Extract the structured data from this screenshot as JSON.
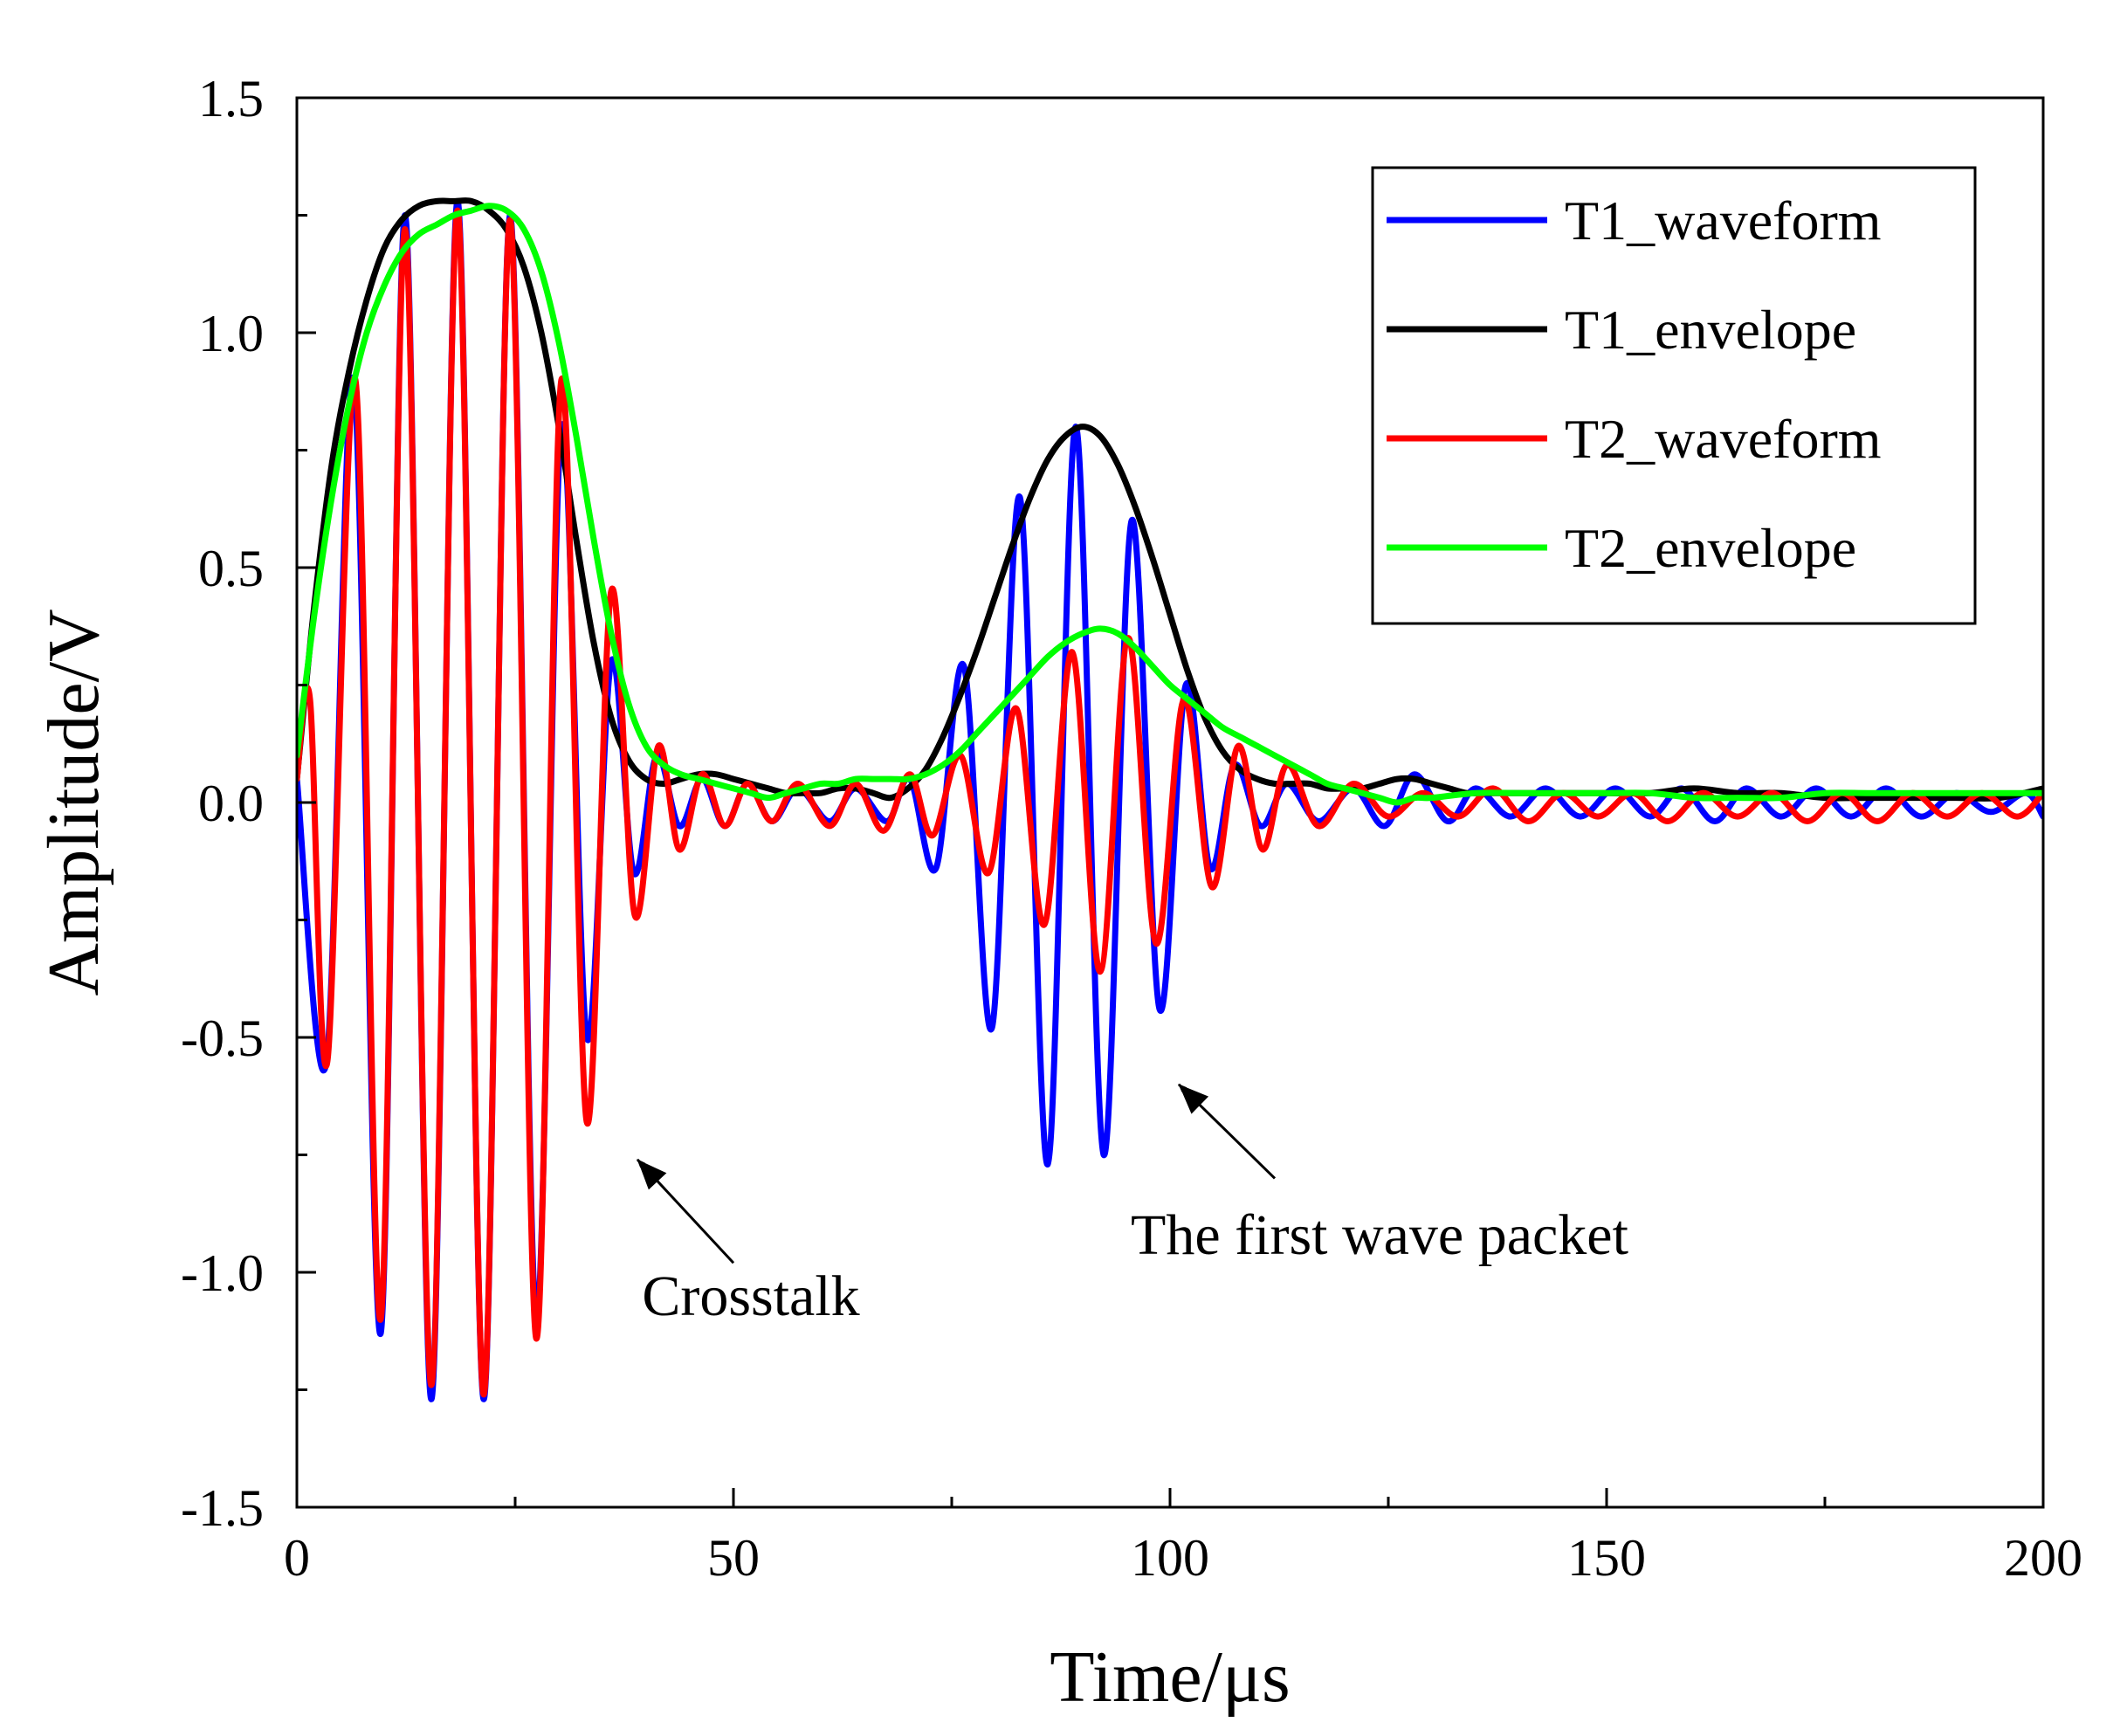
{
  "chart_data": {
    "type": "line",
    "xlabel": "Time/μs",
    "ylabel": "Amplitude/V",
    "xlim": [
      0,
      200
    ],
    "ylim": [
      -1.5,
      1.5
    ],
    "xticks": [
      0,
      50,
      100,
      150,
      200
    ],
    "xtick_labels": [
      "0",
      "50",
      "100",
      "150",
      "200"
    ],
    "yticks": [
      -1.5,
      -1.0,
      -0.5,
      0.0,
      0.5,
      1.0,
      1.5
    ],
    "ytick_labels": [
      "-1.5",
      "-1.0",
      "-0.5",
      "0.0",
      "0.5",
      "1.0",
      "1.5"
    ],
    "grid": false,
    "legend_position": "top-right",
    "series": [
      {
        "name": "T1_waveform",
        "color": "#0000ff",
        "x": [
          0,
          3.4,
          6.5,
          9.6,
          12.4,
          15.4,
          18.4,
          21.4,
          24.4,
          27.4,
          30.3,
          33.2,
          36,
          38.6,
          41.2,
          43.8,
          46.4,
          49,
          51.6,
          54.4,
          57.4,
          61,
          64,
          67.6,
          70.2,
          73.2,
          76.4,
          79.6,
          82.8,
          86,
          89.2,
          92.4,
          95.6,
          98.8,
          101.8,
          104.6,
          107.4,
          110.4,
          113.4,
          117,
          121,
          124.6,
          128,
          131.8,
          135,
          139,
          143,
          147,
          151,
          155,
          158.6,
          162.4,
          166,
          170,
          174,
          178,
          182,
          186,
          190,
          194,
          198,
          200
        ],
        "y": [
          0.05,
          -0.55,
          0.9,
          -1.13,
          1.25,
          -1.27,
          1.28,
          -1.27,
          1.25,
          -1.1,
          0.8,
          -0.5,
          0.3,
          -0.15,
          0.1,
          -0.05,
          0.05,
          -0.05,
          0.04,
          -0.04,
          0.03,
          -0.04,
          0.03,
          -0.04,
          0.05,
          -0.14,
          0.29,
          -0.48,
          0.65,
          -0.77,
          0.8,
          -0.75,
          0.6,
          -0.44,
          0.25,
          -0.14,
          0.08,
          -0.05,
          0.04,
          -0.04,
          0.03,
          -0.05,
          0.06,
          -0.04,
          0.03,
          -0.03,
          0.03,
          -0.03,
          0.03,
          -0.03,
          0.03,
          -0.04,
          0.03,
          -0.03,
          0.03,
          -0.03,
          0.03,
          -0.03,
          0.02,
          -0.02,
          0.02,
          -0.03
        ]
      },
      {
        "name": "T1_envelope",
        "color": "#000000",
        "x": [
          0,
          2,
          4,
          6,
          8,
          10,
          12,
          14,
          16,
          18,
          20,
          22,
          24,
          26,
          28,
          30,
          32,
          34,
          36,
          38,
          40,
          42,
          44,
          46,
          48,
          50,
          52,
          54,
          56,
          58,
          60,
          62,
          64,
          66,
          68,
          70,
          72,
          74,
          76,
          78,
          80,
          82,
          84,
          86,
          88,
          90,
          92,
          94,
          96,
          98,
          100,
          102,
          104,
          106,
          108,
          110,
          112,
          114,
          116,
          118,
          120,
          122,
          124,
          126,
          128,
          130,
          132,
          134,
          136,
          138,
          140,
          145,
          150,
          155,
          160,
          165,
          170,
          175,
          180,
          185,
          190,
          195,
          200
        ],
        "y": [
          0.05,
          0.42,
          0.72,
          0.92,
          1.07,
          1.18,
          1.24,
          1.27,
          1.28,
          1.28,
          1.28,
          1.26,
          1.22,
          1.14,
          1.0,
          0.8,
          0.56,
          0.34,
          0.18,
          0.09,
          0.05,
          0.04,
          0.05,
          0.06,
          0.06,
          0.05,
          0.04,
          0.03,
          0.02,
          0.02,
          0.02,
          0.03,
          0.03,
          0.02,
          0.01,
          0.03,
          0.07,
          0.14,
          0.23,
          0.33,
          0.44,
          0.55,
          0.65,
          0.73,
          0.78,
          0.8,
          0.78,
          0.72,
          0.63,
          0.52,
          0.4,
          0.28,
          0.18,
          0.11,
          0.07,
          0.05,
          0.04,
          0.04,
          0.04,
          0.03,
          0.03,
          0.03,
          0.04,
          0.05,
          0.05,
          0.04,
          0.03,
          0.02,
          0.02,
          0.02,
          0.02,
          0.02,
          0.02,
          0.02,
          0.03,
          0.02,
          0.02,
          0.01,
          0.01,
          0.01,
          0.01,
          0.01,
          0.03
        ]
      },
      {
        "name": "T2_waveform",
        "color": "#ff0000",
        "x": [
          0,
          1.5,
          3.5,
          6.7,
          9.6,
          12.4,
          15.4,
          18.4,
          21.4,
          24.4,
          27.4,
          30.3,
          33.2,
          36,
          38.7,
          41.4,
          43.8,
          46.4,
          49,
          51.6,
          54.4,
          57.4,
          61,
          64,
          67.2,
          70.2,
          72.8,
          76,
          79.2,
          82.4,
          85.6,
          88.8,
          92,
          95.2,
          98.4,
          101.6,
          104.8,
          107.8,
          110.6,
          113.4,
          117,
          121,
          125,
          129,
          133,
          137,
          141,
          145,
          149,
          153,
          157,
          161,
          165,
          169,
          173,
          177,
          181,
          185,
          189,
          193,
          197,
          200
        ],
        "y": [
          0.05,
          0.22,
          -0.55,
          0.9,
          -1.1,
          1.22,
          -1.24,
          1.26,
          -1.26,
          1.24,
          -1.14,
          0.9,
          -0.68,
          0.45,
          -0.24,
          0.12,
          -0.1,
          0.06,
          -0.05,
          0.04,
          -0.04,
          0.04,
          -0.05,
          0.04,
          -0.06,
          0.06,
          -0.07,
          0.1,
          -0.15,
          0.2,
          -0.26,
          0.32,
          -0.36,
          0.35,
          -0.3,
          0.22,
          -0.18,
          0.12,
          -0.1,
          0.08,
          -0.05,
          0.04,
          -0.03,
          0.02,
          -0.03,
          0.03,
          -0.04,
          0.02,
          -0.03,
          0.02,
          -0.04,
          0.02,
          -0.03,
          0.02,
          -0.04,
          0.02,
          -0.04,
          0.02,
          -0.03,
          0.02,
          -0.03,
          0.02
        ]
      },
      {
        "name": "T2_envelope",
        "color": "#00ff00",
        "x": [
          0,
          2,
          4,
          6,
          8,
          10,
          12,
          14,
          16,
          18,
          20,
          22,
          24,
          26,
          28,
          30,
          32,
          34,
          36,
          38,
          40,
          42,
          44,
          46,
          48,
          50,
          52,
          54,
          56,
          58,
          60,
          62,
          64,
          66,
          68,
          70,
          72,
          74,
          76,
          78,
          80,
          82,
          84,
          86,
          88,
          90,
          92,
          94,
          96,
          98,
          100,
          102,
          104,
          106,
          108,
          110,
          112,
          114,
          116,
          118,
          120,
          122,
          124,
          126,
          128,
          130,
          135,
          140,
          145,
          150,
          155,
          160,
          165,
          170,
          175,
          180,
          185,
          190,
          195,
          200
        ],
        "y": [
          0.1,
          0.4,
          0.65,
          0.85,
          1.0,
          1.1,
          1.17,
          1.21,
          1.23,
          1.25,
          1.26,
          1.27,
          1.26,
          1.22,
          1.13,
          0.98,
          0.78,
          0.56,
          0.36,
          0.21,
          0.12,
          0.08,
          0.06,
          0.05,
          0.04,
          0.03,
          0.02,
          0.01,
          0.02,
          0.03,
          0.04,
          0.04,
          0.05,
          0.05,
          0.05,
          0.05,
          0.06,
          0.08,
          0.11,
          0.15,
          0.19,
          0.23,
          0.27,
          0.31,
          0.34,
          0.36,
          0.37,
          0.36,
          0.33,
          0.29,
          0.25,
          0.22,
          0.19,
          0.16,
          0.14,
          0.12,
          0.1,
          0.08,
          0.06,
          0.04,
          0.03,
          0.02,
          0.01,
          0.0,
          0.01,
          0.01,
          0.02,
          0.02,
          0.02,
          0.02,
          0.02,
          0.01,
          0.01,
          0.01,
          0.02,
          0.02,
          0.02,
          0.02,
          0.02,
          0.02
        ]
      }
    ],
    "annotations": [
      {
        "text": "Crosstalk",
        "text_x": 52,
        "text_y": -1.05,
        "arrow_from": [
          50,
          -0.98
        ],
        "arrow_to": [
          39,
          -0.76
        ]
      },
      {
        "text": "The first wave packet",
        "text_x": 124,
        "text_y": -0.92,
        "arrow_from": [
          112,
          -0.8
        ],
        "arrow_to": [
          101,
          -0.6
        ]
      }
    ]
  }
}
